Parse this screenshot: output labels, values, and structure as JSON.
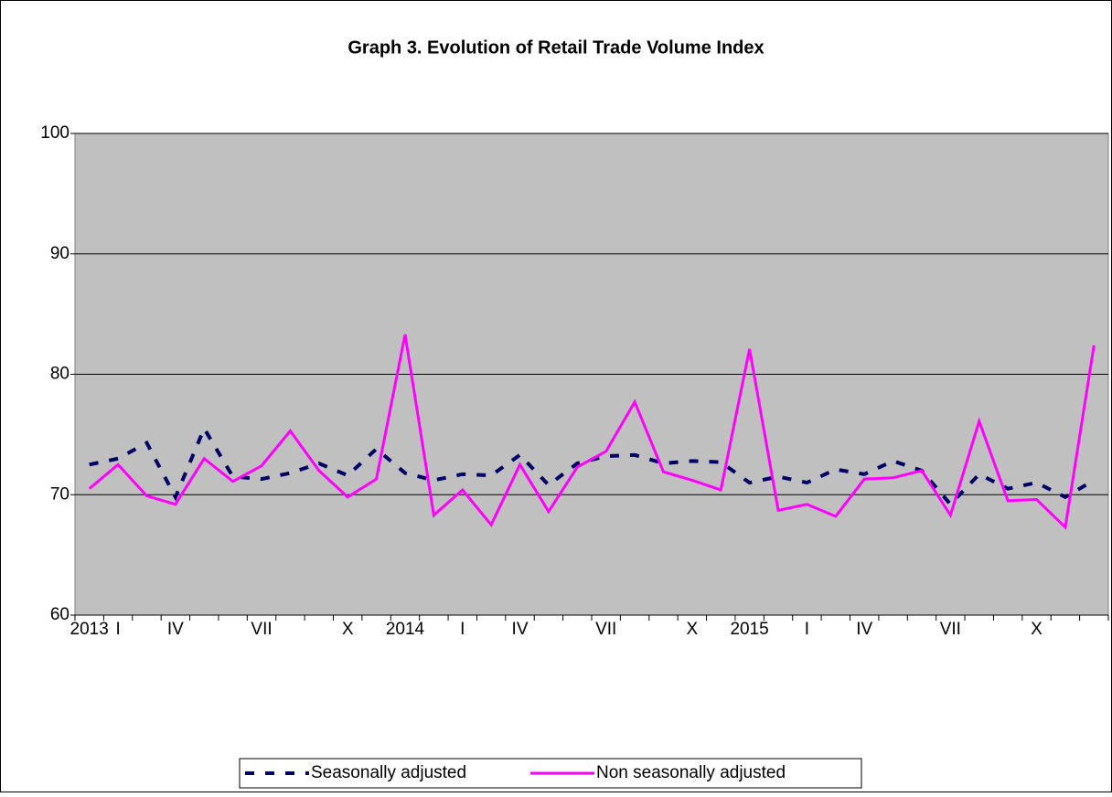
{
  "chart_data": {
    "type": "line",
    "title": "Graph 3. Evolution of Retail Trade Volume Index",
    "categories": [
      "2013",
      "I",
      null,
      "IV",
      null,
      null,
      "VII",
      null,
      null,
      "X",
      null,
      "2014",
      null,
      "I",
      null,
      "IV",
      null,
      null,
      "VII",
      null,
      null,
      "X",
      null,
      "2015",
      null,
      "I",
      null,
      "IV",
      null,
      null,
      "VII",
      null,
      null,
      "X",
      null,
      null
    ],
    "series": [
      {
        "name": "Seasonally adjusted",
        "color": "#000066",
        "dashed": true,
        "values": [
          72.5,
          73.0,
          74.3,
          69.8,
          75.5,
          71.5,
          71.3,
          71.8,
          72.6,
          71.6,
          73.8,
          71.8,
          71.2,
          71.7,
          71.6,
          73.3,
          70.8,
          72.6,
          73.2,
          73.3,
          72.6,
          72.8,
          72.7,
          71.0,
          71.5,
          71.0,
          72.1,
          71.7,
          72.8,
          72.0,
          69.2,
          71.7,
          70.5,
          71.0,
          69.8,
          71.2
        ]
      },
      {
        "name": "Non seasonally adjusted",
        "color": "#ff00ff",
        "dashed": false,
        "values": [
          70.5,
          72.5,
          69.9,
          69.2,
          73.0,
          71.1,
          72.4,
          75.3,
          72.0,
          69.8,
          71.3,
          83.3,
          68.3,
          70.4,
          67.5,
          72.5,
          68.6,
          72.3,
          73.6,
          77.7,
          71.9,
          71.2,
          70.4,
          82.1,
          68.7,
          69.2,
          68.2,
          71.3,
          71.4,
          72.0,
          68.3,
          76.1,
          69.5,
          69.6,
          67.3,
          82.4
        ]
      }
    ],
    "ylim": [
      60,
      100
    ],
    "yticks": [
      60,
      70,
      80,
      90,
      100
    ],
    "grid": true,
    "legend": "bottom"
  }
}
